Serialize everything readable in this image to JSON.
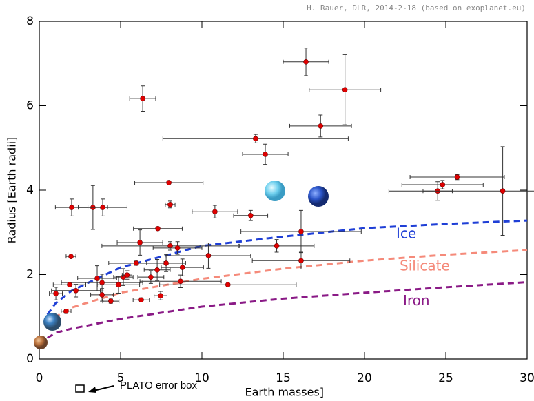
{
  "chart_data": {
    "type": "scatter",
    "credit": "H. Rauer, DLR, 2014-2-18 (based on exoplanet.eu)",
    "xlabel": "Earth masses]",
    "ylabel": "Radius [Earth radii]",
    "xlim": [
      0,
      30
    ],
    "ylim": [
      0,
      8
    ],
    "xticks": [
      0,
      5,
      10,
      15,
      20,
      25,
      30
    ],
    "yticks": [
      0,
      2,
      4,
      6,
      8
    ],
    "series": [
      {
        "color": "#e00000",
        "x": [
          16.4,
          18.8,
          6.36,
          17.3,
          13.3,
          13.9,
          25.7,
          24.8,
          24.5,
          28.5,
          7.97,
          1.99,
          3.3,
          3.9,
          8.05,
          10.8,
          13.0,
          7.29,
          16.1,
          6.19,
          8.05,
          8.5,
          14.6,
          10.4,
          1.95,
          16.1,
          5.97,
          7.8,
          8.8,
          7.25,
          6.86,
          5.17,
          3.56,
          3.86,
          4.87,
          8.69,
          1.86,
          2.25,
          3.86,
          4.4,
          6.27,
          7.46,
          11.6,
          1.02,
          1.65,
          5.4
        ],
        "values": [
          7.04,
          6.38,
          6.17,
          5.52,
          5.22,
          4.85,
          4.31,
          4.13,
          3.98,
          3.98,
          4.18,
          3.59,
          3.59,
          3.59,
          3.66,
          3.49,
          3.4,
          3.09,
          3.02,
          2.76,
          2.68,
          2.63,
          2.68,
          2.45,
          2.43,
          2.33,
          2.27,
          2.27,
          2.17,
          2.11,
          1.94,
          1.94,
          1.91,
          1.81,
          1.76,
          1.84,
          1.76,
          1.62,
          1.52,
          1.37,
          1.4,
          1.5,
          1.76,
          1.55,
          1.13,
          1.99
        ],
        "xerr": [
          1.4,
          2.2,
          0.8,
          1.9,
          5.7,
          1.4,
          2.9,
          2.5,
          0.9,
          7.0,
          2.1,
          1.0,
          0.9,
          1.5,
          0.3,
          1.4,
          1.05,
          1.5,
          3.7,
          1.4,
          4.2,
          1.5,
          2.3,
          2.6,
          0.3,
          3.0,
          1.7,
          1.2,
          1.3,
          0.8,
          0.8,
          0.6,
          1.2,
          2.5,
          1.3,
          2.5,
          1.0,
          1.5,
          0.7,
          0.5,
          0.5,
          0.4,
          4.2,
          0.4,
          0.3,
          0.3
        ],
        "yerr": [
          0.33,
          0.83,
          0.3,
          0.26,
          0.1,
          0.24,
          0.06,
          0.1,
          0.22,
          1.05,
          0.03,
          0.2,
          0.52,
          0.2,
          0.08,
          0.15,
          0.12,
          0.03,
          0.5,
          0.3,
          0.1,
          0.15,
          0.15,
          0.3,
          0.02,
          0.2,
          0.05,
          0.2,
          0.2,
          0.25,
          0.15,
          0.2,
          0.3,
          0.2,
          0.2,
          0.15,
          0.05,
          0.15,
          0.15,
          0.05,
          0.05,
          0.1,
          0.02,
          0.15,
          0.05,
          0.1
        ]
      }
    ],
    "curves": [
      {
        "name": "Ice",
        "color": "#1f3fd6",
        "x": [
          0.5,
          1,
          2,
          5,
          10,
          15,
          20,
          25,
          30
        ],
        "values": [
          1.05,
          1.32,
          1.62,
          2.17,
          2.68,
          2.9,
          3.1,
          3.2,
          3.28
        ]
      },
      {
        "name": "Silicate",
        "color": "#f58a7a",
        "x": [
          0.5,
          1,
          2,
          5,
          10,
          15,
          20,
          25,
          30
        ],
        "values": [
          0.8,
          1.0,
          1.22,
          1.57,
          1.9,
          2.14,
          2.33,
          2.47,
          2.58
        ]
      },
      {
        "name": "Iron",
        "color": "#8a1a86",
        "x": [
          0.5,
          1,
          2,
          5,
          10,
          15,
          20,
          25,
          30
        ],
        "values": [
          0.5,
          0.62,
          0.72,
          0.95,
          1.24,
          1.43,
          1.57,
          1.7,
          1.82
        ]
      }
    ],
    "annotation": "PLATO error box"
  }
}
